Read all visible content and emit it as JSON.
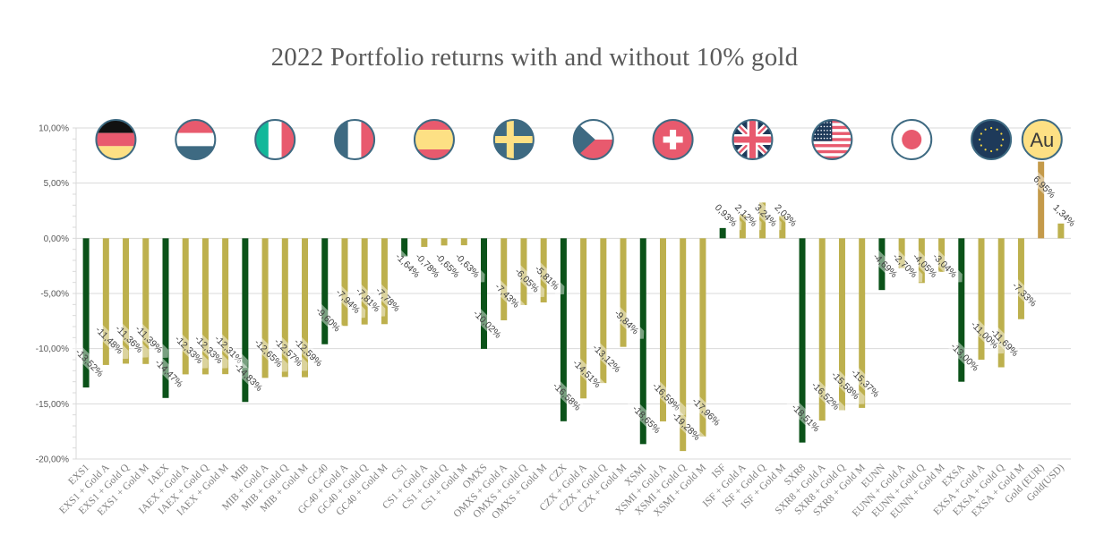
{
  "chart_data": {
    "type": "bar",
    "title": "2022 Portfolio returns with and without 10% gold",
    "xlabel": "",
    "ylabel": "",
    "ylim": [
      -20,
      10
    ],
    "yticks": [
      10,
      5,
      0,
      -5,
      -10,
      -15,
      -20
    ],
    "ytick_labels": [
      "10,00%",
      "5,00%",
      "0,00%",
      "-5,00%",
      "-10,00%",
      "-15,00%",
      "-20,00%"
    ],
    "grid": true,
    "legend": "none",
    "colors": {
      "base": "#0b5219",
      "gold_mix": "#bdb04d",
      "gold_eur": "#c49a4a",
      "flag_border": "#3e6a82"
    },
    "categories": [
      "EXS1",
      "EXS1 + Gold A",
      "EXS1 + Gold Q",
      "EXS1 + Gold M",
      "IAEX",
      "IAEX + Gold A",
      "IAEX + Gold Q",
      "IAEX + Gold M",
      "MIB",
      "MIB + Gold A",
      "MIB + Gold Q",
      "MIB + Gold M",
      "GC40",
      "GC40 + Gold A",
      "GC40 + Gold Q",
      "GC40 + Gold M",
      "CS1",
      "CS1 + Gold A",
      "CS1 + Gold Q",
      "CS1 + Gold M",
      "OMXS",
      "OMXS + Gold A",
      "OMXS + Gold Q",
      "OMXS + Gold M",
      "CZX",
      "CZX + Gold A",
      "CZX + Gold Q",
      "CZX + Gold M",
      "XSMI",
      "XSMI + Gold A",
      "XSMI + Gold Q",
      "XSMI + Gold M",
      "ISF",
      "ISF + Gold A",
      "ISF + Gold Q",
      "ISF + Gold M",
      "SXR8",
      "SXR8 + Gold A",
      "SXR8 + Gold Q",
      "SXR8 + Gold M",
      "EUNN",
      "EUNN + Gold A",
      "EUNN + Gold Q",
      "EUNN + Gold M",
      "EXSA",
      "EXSA + Gold A",
      "EXSA + Gold Q",
      "EXSA + Gold M",
      "Gold (EUR)",
      "Gold(USD)"
    ],
    "values": [
      -13.52,
      -11.48,
      -11.36,
      -11.39,
      -14.47,
      -12.33,
      -12.33,
      -12.31,
      -14.83,
      -12.65,
      -12.57,
      -12.59,
      -9.6,
      -7.94,
      -7.81,
      -7.78,
      -1.64,
      -0.78,
      -0.65,
      -0.63,
      -10.02,
      -7.43,
      -6.05,
      -5.81,
      -16.58,
      -14.51,
      -13.12,
      -9.84,
      -18.65,
      -16.59,
      -19.28,
      -17.96,
      0.93,
      2.12,
      3.24,
      2.03,
      -18.51,
      -16.52,
      -15.58,
      -15.37,
      -4.69,
      -2.7,
      -4.05,
      -3.04,
      -13.0,
      -11.0,
      -11.69,
      -7.33,
      6.95,
      1.34
    ],
    "data_labels": [
      "-13,52%",
      "-11,48%",
      "-11,36%",
      "-11,39%",
      "-14,47%",
      "-12,33%",
      "-12,33%",
      "-12,31%",
      "-14,83%",
      "-12,65%",
      "-12,57%",
      "-12,59%",
      "-9,60%",
      "-7,94%",
      "-7,81%",
      "-7,78%",
      "-1,64%",
      "-0,78%",
      "-0,65%",
      "-0,63%",
      "-10,02%",
      "-7,43%",
      "-6,05%",
      "-5,81%",
      "-16,58%",
      "-14,51%",
      "-13,12%",
      "-9,84%",
      "-18,65%",
      "-16,59%",
      "-19,28%",
      "-17,96%",
      "0,93%",
      "2,12%",
      "3,24%",
      "2,03%",
      "-18,51%",
      "-16,52%",
      "-15,58%",
      "-15,37%",
      "-4,69%",
      "-2,70%",
      "-4,05%",
      "-3,04%",
      "-13,00%",
      "-11,00%",
      "-11,69%",
      "-7,33%",
      "6,95%",
      "1,34%"
    ],
    "groups": [
      {
        "name": "EXS1",
        "flag": "germany-flag",
        "start": 0
      },
      {
        "name": "IAEX",
        "flag": "netherlands-flag",
        "start": 4
      },
      {
        "name": "MIB",
        "flag": "italy-flag",
        "start": 8
      },
      {
        "name": "GC40",
        "flag": "france-flag",
        "start": 12
      },
      {
        "name": "CS1",
        "flag": "spain-flag",
        "start": 16
      },
      {
        "name": "OMXS",
        "flag": "sweden-flag",
        "start": 20
      },
      {
        "name": "CZX",
        "flag": "czech-flag",
        "start": 24
      },
      {
        "name": "XSMI",
        "flag": "switzerland-flag",
        "start": 28
      },
      {
        "name": "ISF",
        "flag": "uk-flag",
        "start": 32
      },
      {
        "name": "SXR8",
        "flag": "usa-flag",
        "start": 36
      },
      {
        "name": "EUNN",
        "flag": "japan-flag",
        "start": 40
      },
      {
        "name": "EXSA",
        "flag": "eu-flag",
        "start": 44
      },
      {
        "name": "Gold",
        "flag": "gold-au-icon",
        "start": 48,
        "text": "Au"
      }
    ]
  }
}
